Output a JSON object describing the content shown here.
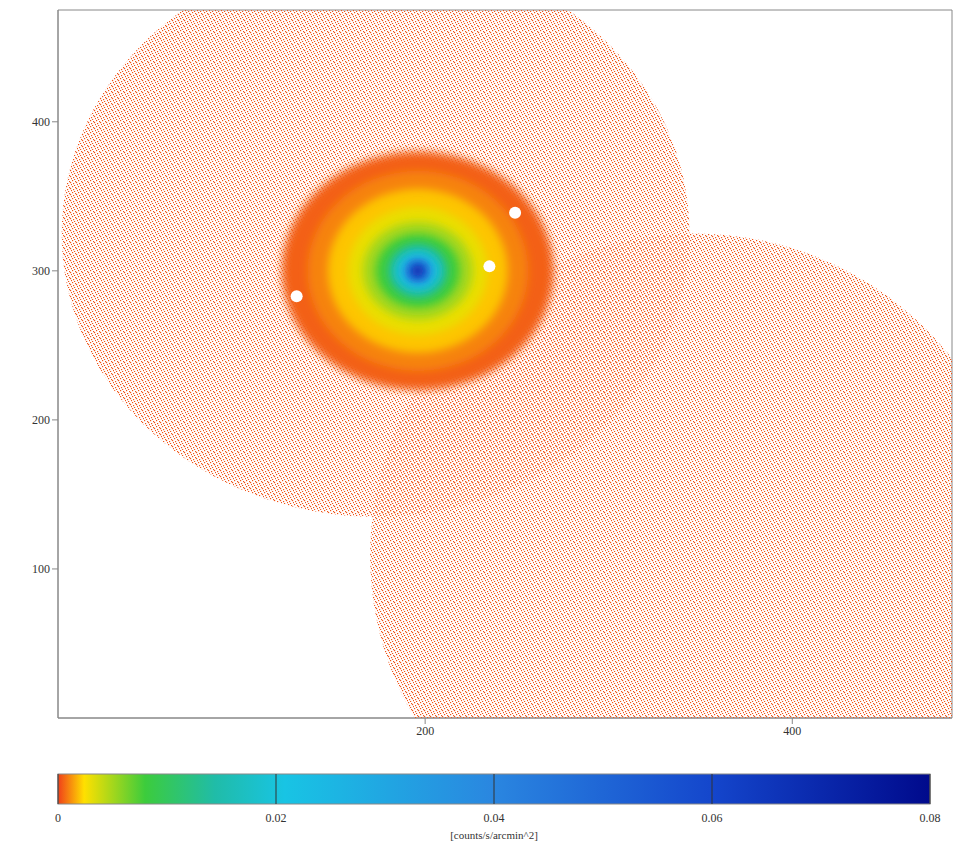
{
  "chart_data": {
    "type": "heatmap",
    "xlim": [
      0,
      487
    ],
    "ylim": [
      0,
      475
    ],
    "xticks": [
      200,
      400
    ],
    "yticks": [
      100,
      200,
      300,
      400
    ],
    "fields": [
      {
        "center": [
          173,
          325
        ],
        "rx": 171,
        "ry": 190,
        "value": 0.0003
      },
      {
        "center": [
          347,
          109
        ],
        "rx": 177,
        "ry": 216,
        "value": 0.0003
      }
    ],
    "source": {
      "center": [
        196,
        300
      ],
      "levels": [
        {
          "value": 0.0005,
          "rx": 74,
          "ry": 80
        },
        {
          "value": 0.001,
          "rx": 60,
          "ry": 67
        },
        {
          "value": 0.002,
          "rx": 49,
          "ry": 55
        },
        {
          "value": 0.003,
          "rx": 38,
          "ry": 43
        },
        {
          "value": 0.005,
          "rx": 30,
          "ry": 33
        },
        {
          "value": 0.008,
          "rx": 23,
          "ry": 25
        },
        {
          "value": 0.014,
          "rx": 16,
          "ry": 18
        },
        {
          "value": 0.02,
          "rx": 12,
          "ry": 13
        },
        {
          "value": 0.035,
          "rx": 8,
          "ry": 9
        },
        {
          "value": 0.05,
          "rx": 5.5,
          "ry": 6
        },
        {
          "value": 0.07,
          "rx": 3.3,
          "ry": 4
        }
      ]
    },
    "masked": [
      [
        249,
        339
      ],
      [
        235,
        303
      ],
      [
        130,
        283
      ]
    ],
    "colorbar": {
      "range": [
        0,
        0.08
      ],
      "ticks": [
        0,
        0.02,
        0.04,
        0.06,
        0.08
      ],
      "label": "[counts/s/arcmin^2]"
    }
  }
}
